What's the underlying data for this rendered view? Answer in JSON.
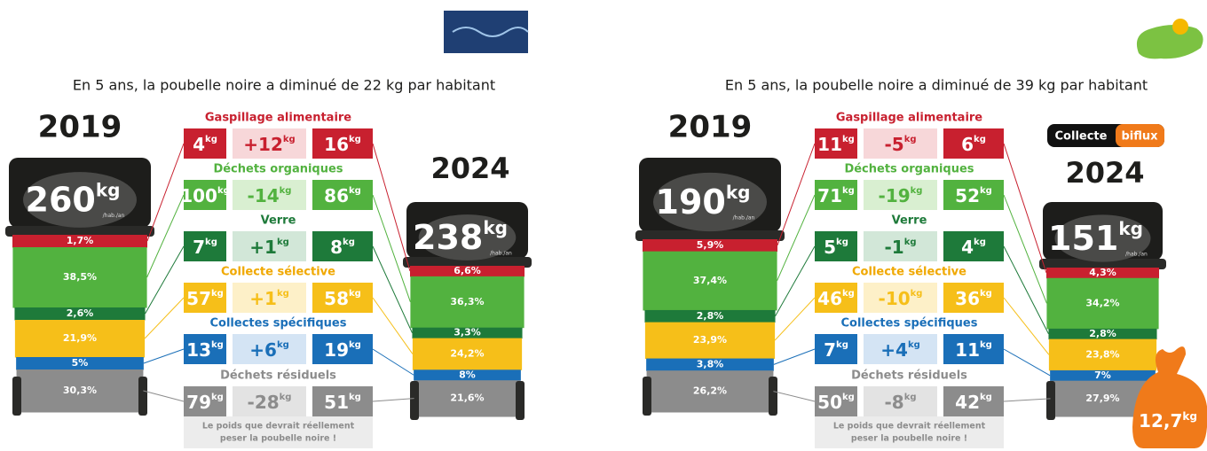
{
  "unit": "kg",
  "categories": [
    "Gaspillage alimentaire",
    "Déchets organiques",
    "Verre",
    "Collecte sélective",
    "Collectes spécifiques",
    "Déchets résiduels"
  ],
  "panels": [
    {
      "title": "En 5 ans, la poubelle noire a diminué de 22 kg par habitant",
      "year_start": "2019",
      "year_end": "2024",
      "bin_start": {
        "total": "260",
        "per": "/hab./an",
        "segments": [
          "1,7%",
          "38,5%",
          "2,6%",
          "21,9%",
          "5%",
          "30,3%"
        ]
      },
      "bin_end": {
        "total": "238",
        "per": "/hab./an",
        "segments": [
          "6,6%",
          "36,3%",
          "3,3%",
          "24,2%",
          "8%",
          "21,6%"
        ]
      },
      "rows": [
        {
          "start": "4",
          "change": "+12",
          "end": "16"
        },
        {
          "start": "100",
          "change": "-14",
          "end": "86"
        },
        {
          "start": "7",
          "change": "+1",
          "end": "8"
        },
        {
          "start": "57",
          "change": "+1",
          "end": "58"
        },
        {
          "start": "13",
          "change": "+6",
          "end": "19"
        },
        {
          "start": "79",
          "change": "-28",
          "end": "51"
        }
      ],
      "note": [
        "Le poids que devrait réellement",
        "peser la poubelle noire !"
      ]
    },
    {
      "title": "En 5 ans, la poubelle noire a diminué de 39 kg par habitant",
      "year_start": "2019",
      "year_end": "2024",
      "bin_start": {
        "total": "190",
        "per": "/hab./an",
        "segments": [
          "5,9%",
          "37,4%",
          "2,8%",
          "23,9%",
          "3,8%",
          "26,2%"
        ]
      },
      "bin_end": {
        "total": "151",
        "per": "/hab./an",
        "segments": [
          "4,3%",
          "34,2%",
          "2,8%",
          "23,8%",
          "7%",
          "27,9%"
        ]
      },
      "rows": [
        {
          "start": "11",
          "change": "-5",
          "end": "6"
        },
        {
          "start": "71",
          "change": "-19",
          "end": "52"
        },
        {
          "start": "5",
          "change": "-1",
          "end": "4"
        },
        {
          "start": "46",
          "change": "-10",
          "end": "36"
        },
        {
          "start": "7",
          "change": "+4",
          "end": "11"
        },
        {
          "start": "50",
          "change": "-8",
          "end": "42"
        }
      ],
      "note": [
        "Le poids que devrait réellement",
        "peser la poubelle noire !"
      ],
      "badge": [
        "Collecte",
        "biflux"
      ],
      "bag": "12,7"
    }
  ]
}
